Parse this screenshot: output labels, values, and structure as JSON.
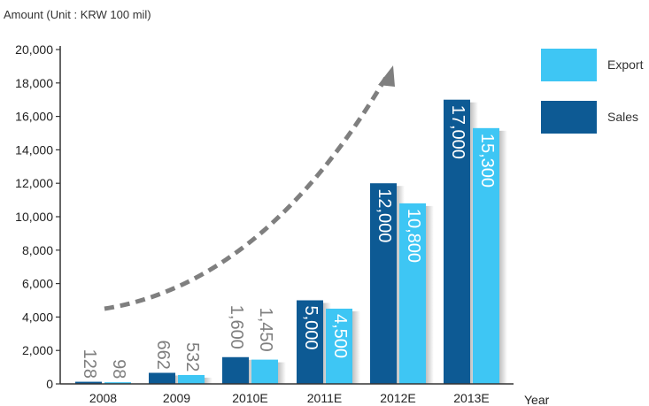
{
  "chart_data": {
    "type": "bar",
    "unit_label": "Amount (Unit : KRW 100 mil)",
    "xlabel": "Year",
    "ylabel": "",
    "ylim": [
      0,
      20000
    ],
    "yticks": [
      0,
      2000,
      4000,
      6000,
      8000,
      10000,
      12000,
      14000,
      16000,
      18000,
      20000
    ],
    "ytick_labels": [
      "0",
      "2,000",
      "4,000",
      "6,000",
      "8,000",
      "10,000",
      "12,000",
      "14,000",
      "16,000",
      "18,000",
      "20,000"
    ],
    "categories": [
      "2008",
      "2009",
      "2010E",
      "2011E",
      "2012E",
      "2013E"
    ],
    "series": [
      {
        "name": "Sales",
        "color": "#0d5a94",
        "values": [
          128,
          662,
          1600,
          5000,
          12000,
          17000
        ],
        "labels": [
          "128",
          "662",
          "1,600",
          "5,000",
          "12,000",
          "17,000"
        ]
      },
      {
        "name": "Export",
        "color": "#3ec6f4",
        "values": [
          98,
          532,
          1450,
          4500,
          10800,
          15300
        ],
        "labels": [
          "98",
          "532",
          "1,450",
          "4,500",
          "10,800",
          "15,300"
        ]
      }
    ],
    "legend_position": "right",
    "legend_order": [
      "Export",
      "Sales"
    ],
    "grid": false,
    "annotation": "dashed-growth-arrow",
    "colors": {
      "sales": "#0d5a94",
      "export": "#3ec6f4",
      "arrow": "#7f7f7f",
      "axis": "#333333",
      "label_inside": "#ffffff",
      "label_outside": "#7f7f7f"
    }
  }
}
